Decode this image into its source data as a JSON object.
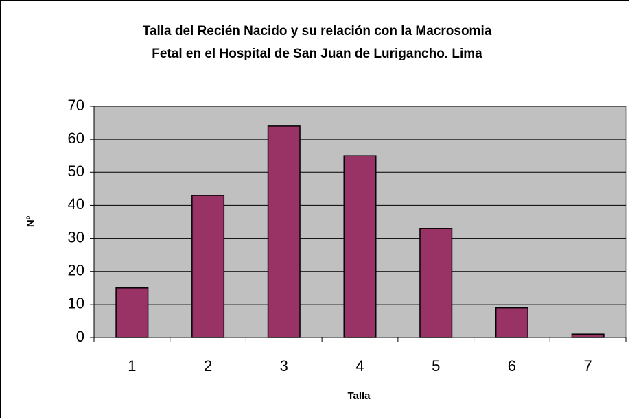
{
  "chart_data": {
    "type": "bar",
    "title": [
      "Talla del Recién Nacido y su relación con la Macrosomia",
      "Fetal en el Hospital de San Juan de Lurigancho. Lima"
    ],
    "x_label": "Talla",
    "y_label": "Nº",
    "categories": [
      "1",
      "2",
      "3",
      "4",
      "5",
      "6",
      "7"
    ],
    "values": [
      15,
      43,
      64,
      55,
      33,
      9,
      1
    ],
    "color": "#993366",
    "ylim": [
      0,
      70
    ],
    "yticks": [
      0,
      10,
      20,
      30,
      40,
      50,
      60,
      70
    ],
    "grid": true
  }
}
